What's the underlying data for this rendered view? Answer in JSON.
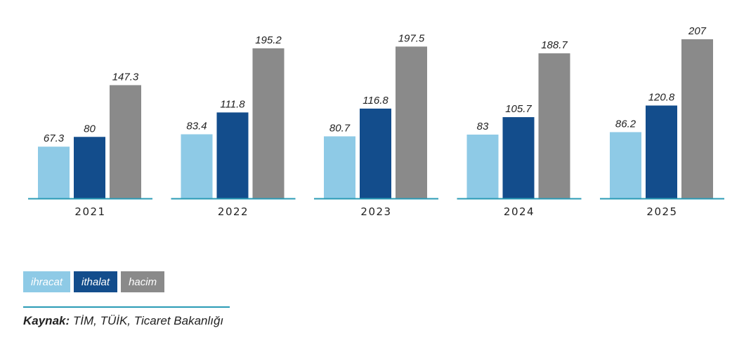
{
  "chart_data": {
    "type": "bar",
    "title": "",
    "xlabel": "",
    "ylabel": "",
    "categories": [
      "2021",
      "2022",
      "2023",
      "2024",
      "2025"
    ],
    "series": [
      {
        "name": "ihracat",
        "color": "#8ecae6",
        "values": [
          67.3,
          83.4,
          80.7,
          83,
          86.2
        ]
      },
      {
        "name": "ithalat",
        "color": "#134d8c",
        "values": [
          80,
          111.8,
          116.8,
          105.7,
          120.8
        ]
      },
      {
        "name": "hacim",
        "color": "#8a8a8a",
        "values": [
          147.3,
          195.2,
          197.5,
          188.7,
          207
        ]
      }
    ],
    "value_labels": [
      [
        "67.3",
        "80",
        "147.3"
      ],
      [
        "83.4",
        "111.8",
        "195.2"
      ],
      [
        "80.7",
        "116.8",
        "197.5"
      ],
      [
        "83",
        "105.7",
        "188.7"
      ],
      [
        "86.2",
        "120.8",
        "207"
      ]
    ],
    "ylim": [
      0,
      207
    ],
    "grid": false,
    "legend_position": "bottom-left",
    "axis_color": "#2a9bb5"
  },
  "source": {
    "label": "Kaynak:",
    "text": " TİM, TÜİK, Ticaret Bakanlığı"
  }
}
